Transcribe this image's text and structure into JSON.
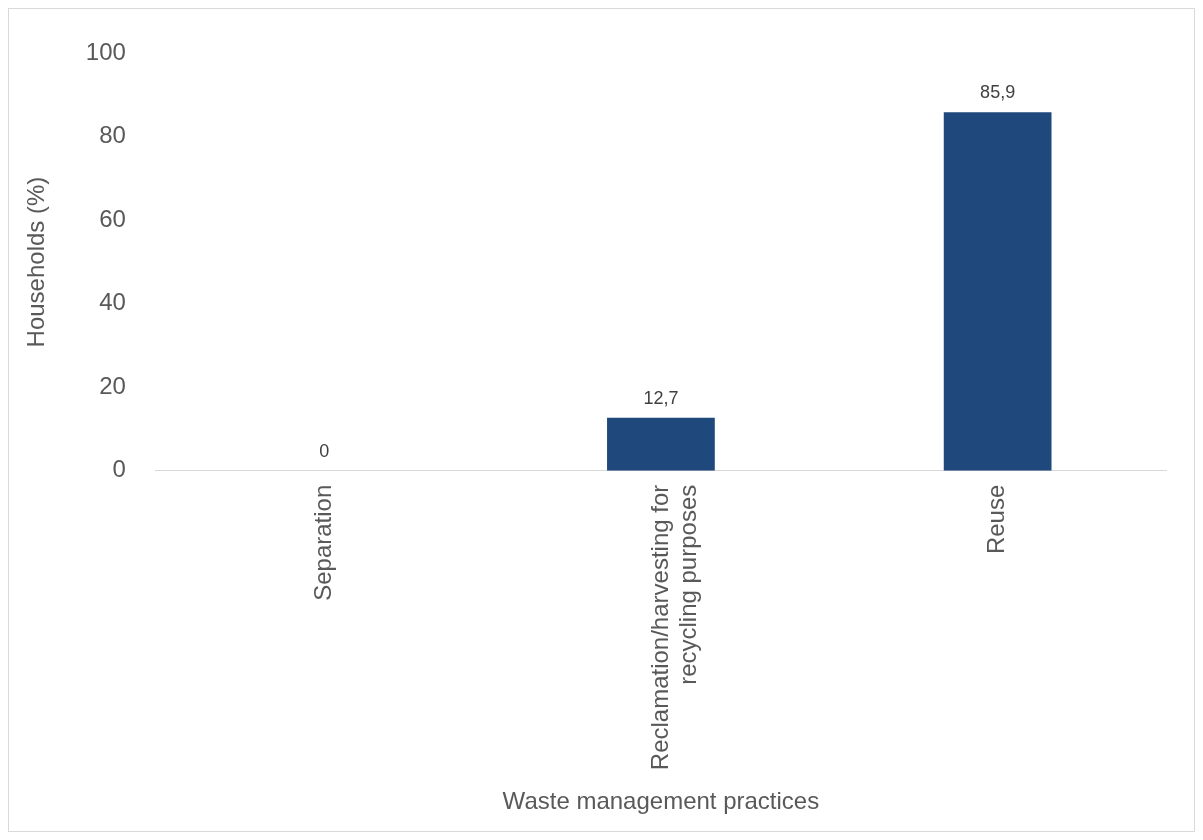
{
  "chart_data": {
    "type": "bar",
    "xlabel": "Waste management practices",
    "ylabel": "Households (%)",
    "categories": [
      "Separation",
      "Reclamation/harvesting for recycling purposes",
      "Reuse"
    ],
    "values": [
      0,
      12.7,
      85.9
    ],
    "value_labels": [
      "0",
      "12,7",
      "85,9"
    ],
    "color": "#1f497d",
    "ylim": [
      0,
      100
    ],
    "yticks": [
      0,
      20,
      40,
      60,
      80,
      100
    ],
    "grid": false,
    "legend": false
  }
}
